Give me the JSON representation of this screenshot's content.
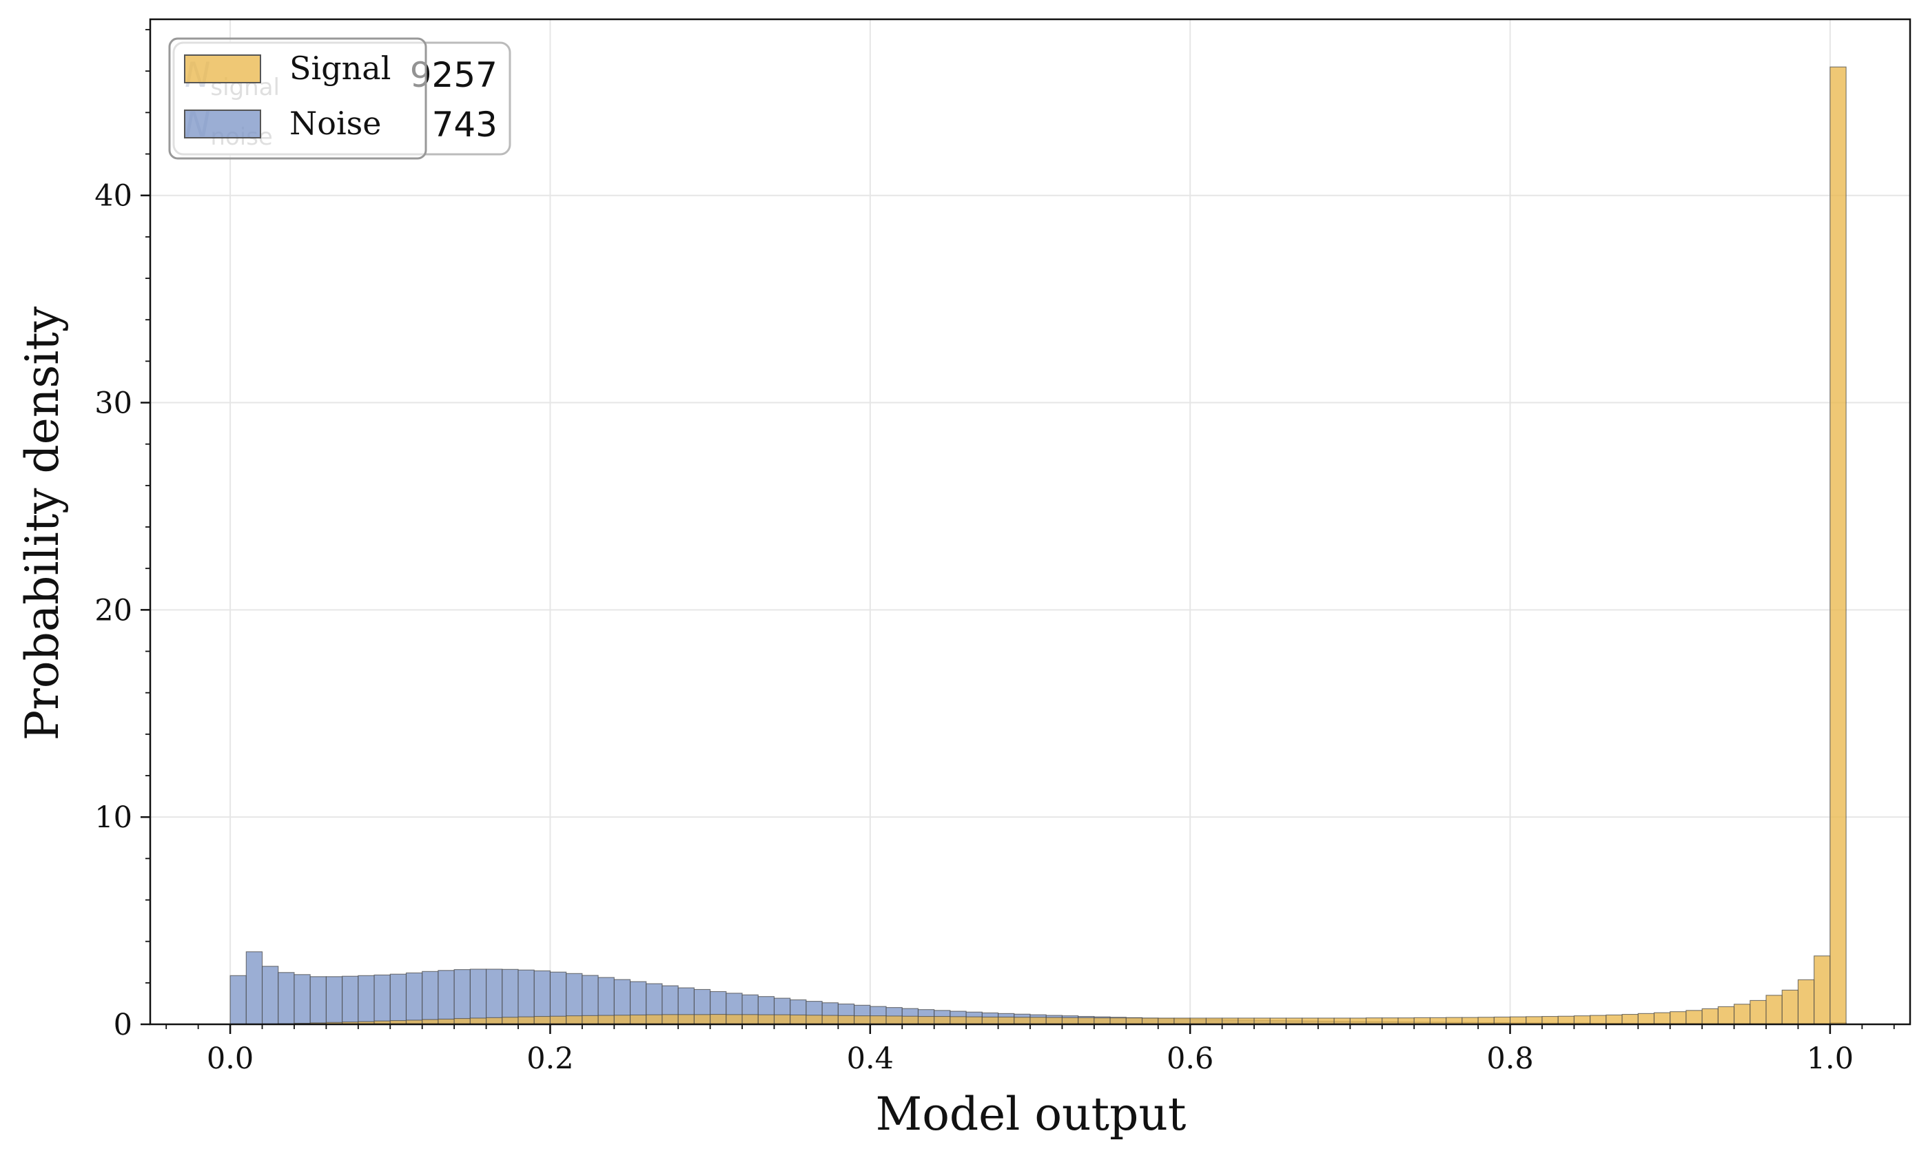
{
  "chart_data": {
    "type": "bar",
    "subtype": "overlaid-histogram",
    "xlabel": "Model output",
    "ylabel": "Probability density",
    "xlim": [
      -0.05,
      1.05
    ],
    "ylim": [
      0,
      48.5
    ],
    "xticks": [
      0.0,
      0.2,
      0.4,
      0.6,
      0.8,
      1.0
    ],
    "xtick_labels": [
      "0.0",
      "0.2",
      "0.4",
      "0.6",
      "0.8",
      "1.0"
    ],
    "yticks": [
      0,
      10,
      20,
      30,
      40
    ],
    "ytick_labels": [
      "0",
      "10",
      "20",
      "30",
      "40"
    ],
    "grid": true,
    "bin_width": 0.01,
    "bin_start": 0.0,
    "legend": {
      "placement": "top-left",
      "entries": [
        {
          "label": "Signal",
          "color": "#ebb84e"
        },
        {
          "label": "Noise",
          "color": "#7f97c8"
        }
      ]
    },
    "counts_box": {
      "placement": "top-left",
      "signal_symbol": "N",
      "signal_sub": "signal",
      "signal_value_visible": "9257",
      "noise_symbol": "N",
      "noise_sub": "noise",
      "noise_value_visible": "743"
    },
    "series": [
      {
        "name": "Signal",
        "color": "#ebb84e",
        "values": [
          0.01,
          0.01,
          0.02,
          0.03,
          0.05,
          0.07,
          0.09,
          0.11,
          0.13,
          0.16,
          0.18,
          0.2,
          0.23,
          0.25,
          0.28,
          0.3,
          0.32,
          0.34,
          0.36,
          0.38,
          0.39,
          0.41,
          0.42,
          0.43,
          0.44,
          0.45,
          0.46,
          0.47,
          0.47,
          0.47,
          0.48,
          0.47,
          0.47,
          0.46,
          0.46,
          0.45,
          0.44,
          0.43,
          0.42,
          0.41,
          0.41,
          0.4,
          0.39,
          0.38,
          0.38,
          0.37,
          0.36,
          0.35,
          0.35,
          0.34,
          0.34,
          0.33,
          0.32,
          0.32,
          0.31,
          0.31,
          0.31,
          0.3,
          0.3,
          0.3,
          0.3,
          0.3,
          0.3,
          0.3,
          0.3,
          0.3,
          0.3,
          0.3,
          0.3,
          0.3,
          0.3,
          0.31,
          0.31,
          0.31,
          0.32,
          0.32,
          0.33,
          0.33,
          0.34,
          0.35,
          0.36,
          0.37,
          0.38,
          0.39,
          0.41,
          0.43,
          0.45,
          0.48,
          0.52,
          0.56,
          0.61,
          0.67,
          0.75,
          0.85,
          0.97,
          1.15,
          1.4,
          1.65,
          2.15,
          3.3,
          46.2
        ]
      },
      {
        "name": "Noise",
        "color": "#7f97c8",
        "values": [
          2.35,
          3.5,
          2.8,
          2.5,
          2.4,
          2.3,
          2.3,
          2.32,
          2.35,
          2.38,
          2.42,
          2.48,
          2.55,
          2.6,
          2.64,
          2.66,
          2.66,
          2.65,
          2.62,
          2.58,
          2.52,
          2.45,
          2.36,
          2.26,
          2.16,
          2.06,
          1.96,
          1.86,
          1.76,
          1.68,
          1.58,
          1.5,
          1.42,
          1.34,
          1.26,
          1.18,
          1.11,
          1.04,
          0.98,
          0.92,
          0.86,
          0.81,
          0.76,
          0.71,
          0.67,
          0.63,
          0.59,
          0.55,
          0.52,
          0.49,
          0.46,
          0.43,
          0.41,
          0.38,
          0.36,
          0.34,
          0.32,
          0.3,
          0.28,
          0.26,
          0.24,
          0.23,
          0.21,
          0.2,
          0.19,
          0.18,
          0.17,
          0.16,
          0.15,
          0.14,
          0.13,
          0.12,
          0.12,
          0.11,
          0.1,
          0.1,
          0.09,
          0.09,
          0.08,
          0.08,
          0.07,
          0.07,
          0.06,
          0.06,
          0.06,
          0.05,
          0.05,
          0.05,
          0.04,
          0.04,
          0.04,
          0.04,
          0.03,
          0.03,
          0.03,
          0.03,
          0.03,
          0.03,
          0.03,
          0.03,
          0.08
        ]
      }
    ]
  }
}
